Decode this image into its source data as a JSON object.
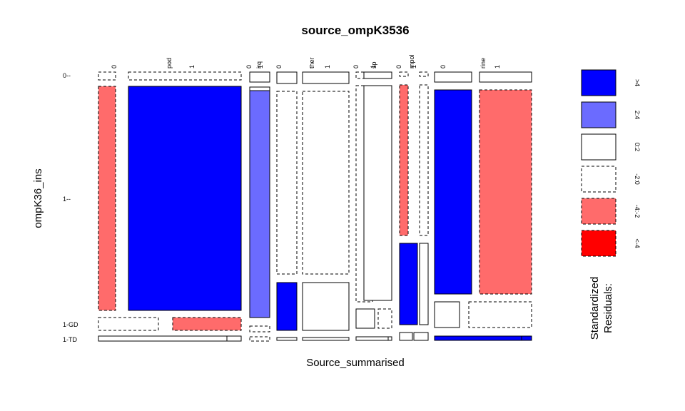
{
  "chart_data": {
    "type": "mosaic",
    "title": "source_ompK3536",
    "xlabel": "Source_summarised",
    "ylabel": "ompK36_ins",
    "row_levels": [
      "0--",
      "1--",
      "1-GD",
      "1-TD"
    ],
    "source_groups": [
      {
        "name": "pod",
        "levels": [
          "0",
          "1"
        ]
      },
      {
        "name": "irq",
        "levels": [
          "0",
          "1"
        ]
      },
      {
        "name": "ther",
        "levels": [
          "0",
          "1"
        ]
      },
      {
        "name": "sp",
        "levels": [
          "0",
          "1"
        ]
      },
      {
        "name": "mpol",
        "levels": [
          "0",
          "1"
        ]
      },
      {
        "name": "rine",
        "levels": [
          "0",
          "1"
        ]
      }
    ],
    "legend": {
      "title_line1": "Standardized",
      "title_line2": "Residuals:",
      "entries": [
        {
          "label": ">4",
          "color": "#0000FF",
          "dashed": false
        },
        {
          "label": "2:4",
          "color": "#6B6BFF",
          "dashed": false
        },
        {
          "label": "0:2",
          "color": "#FFFFFF",
          "dashed": false
        },
        {
          "label": "-2:0",
          "color": "#FFFFFF",
          "dashed": true
        },
        {
          "label": "-4:-2",
          "color": "#FF6B6B",
          "dashed": true
        },
        {
          "label": "<-4",
          "color": "#FF0000",
          "dashed": true
        }
      ]
    },
    "residual_classes": [
      {
        "group": "pod",
        "level": "0",
        "cells": [
          "-2:0",
          "-4:-2",
          "-2:0",
          "0:2"
        ]
      },
      {
        "group": "pod",
        "level": "1",
        "cells": [
          "-2:0",
          ">4",
          "-4:-2",
          "0:2"
        ]
      },
      {
        "group": "irq",
        "level": "0",
        "cells": [
          "0:2",
          "0:2",
          "-2:0",
          "-2:0"
        ]
      },
      {
        "group": "irq",
        "level": "1",
        "cells": [
          "0:2",
          "2:4",
          "-2:0",
          "-2:0"
        ]
      },
      {
        "group": "ther",
        "level": "0",
        "cells": [
          "0:2",
          "-2:0",
          ">4",
          "0:2"
        ]
      },
      {
        "group": "ther",
        "level": "1",
        "cells": [
          "0:2",
          "-2:0",
          "0:2",
          "0:2"
        ]
      },
      {
        "group": "sp",
        "level": "0",
        "cells": [
          "-2:0",
          "-2:0",
          "0:2",
          "0:2"
        ]
      },
      {
        "group": "sp",
        "level": "1",
        "cells": [
          "0:2",
          "0:2",
          "-2:0",
          "0:2"
        ]
      },
      {
        "group": "mpol",
        "level": "0",
        "cells": [
          "-2:0",
          "-4:-2",
          ">4",
          "0:2"
        ]
      },
      {
        "group": "mpol",
        "level": "1",
        "cells": [
          "-2:0",
          "-2:0",
          "0:2",
          "0:2"
        ]
      },
      {
        "group": "rine",
        "level": "0",
        "cells": [
          "0:2",
          ">4",
          "0:2",
          ">4"
        ]
      },
      {
        "group": "rine",
        "level": "1",
        "cells": [
          "0:2",
          "-4:-2",
          "-2:0",
          ">4"
        ]
      }
    ]
  }
}
